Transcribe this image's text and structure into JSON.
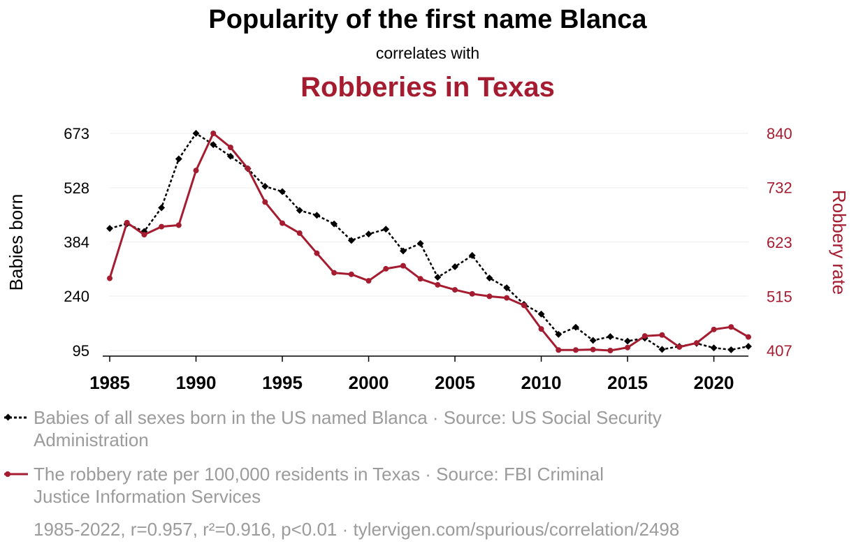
{
  "title": "Popularity of the first name Blanca",
  "subtitle": "correlates with",
  "title2": "Robberies in Texas",
  "colors": {
    "left": "#000000",
    "right": "#a51c30",
    "legend_text": "#9b9b9b",
    "grid": "#ececec"
  },
  "chart_data": {
    "type": "line",
    "x": [
      1985,
      1986,
      1987,
      1988,
      1989,
      1990,
      1991,
      1992,
      1993,
      1994,
      1995,
      1996,
      1997,
      1998,
      1999,
      2000,
      2001,
      2002,
      2003,
      2004,
      2005,
      2006,
      2007,
      2008,
      2009,
      2010,
      2011,
      2012,
      2013,
      2014,
      2015,
      2016,
      2017,
      2018,
      2019,
      2020,
      2021,
      2022
    ],
    "xticks": [
      "1985",
      "1990",
      "1995",
      "2000",
      "2005",
      "2010",
      "2015",
      "2020"
    ],
    "xlim": [
      1985,
      2022
    ],
    "left_axis": {
      "label": "Babies born",
      "ticks": [
        "95",
        "240",
        "384",
        "528",
        "673"
      ],
      "ylim": [
        95,
        673
      ]
    },
    "right_axis": {
      "label": "Robbery rate",
      "ticks": [
        "407",
        "515",
        "623",
        "732",
        "840"
      ],
      "ylim": [
        407,
        840
      ]
    },
    "series": [
      {
        "name": "Babies of all sexes born in the US named Blanca · Source: US Social Security Administration",
        "axis": "left",
        "style": "dashed-diamond",
        "values": [
          420,
          432,
          412,
          475,
          605,
          673,
          643,
          612,
          579,
          532,
          518,
          468,
          455,
          432,
          388,
          405,
          418,
          360,
          380,
          290,
          318,
          348,
          288,
          262,
          218,
          192,
          138,
          157,
          122,
          132,
          120,
          128,
          98,
          106,
          114,
          102,
          97,
          106
        ]
      },
      {
        "name": "The robbery rate per 100,000 residents in Texas · Source: FBI Criminal Justice Information Services",
        "axis": "right",
        "style": "solid-circle",
        "values": [
          551,
          662,
          638,
          654,
          657,
          766,
          840,
          812,
          770,
          703,
          661,
          641,
          601,
          562,
          559,
          546,
          570,
          576,
          550,
          538,
          528,
          520,
          515,
          512,
          497,
          450,
          408,
          408,
          409,
          407,
          413,
          436,
          438,
          414,
          422,
          449,
          454,
          434
        ]
      }
    ],
    "grid": "horizontal",
    "legend": "bottom"
  },
  "legend": [
    {
      "label": "Babies of all sexes born in the US named Blanca · Source: US Social Security Administration",
      "line1": "Babies of all sexes born in the US named Blanca · Source: US Social Security",
      "line2": "Administration"
    },
    {
      "label": "The robbery rate per 100,000 residents in Texas · Source: FBI Criminal Justice Information Services",
      "line1": "The robbery rate per 100,000 residents in Texas · Source: FBI Criminal",
      "line2": "Justice Information Services"
    }
  ],
  "footer": "1985-2022, r=0.957, r²=0.916, p<0.01 · tylervigen.com/spurious/correlation/2498"
}
